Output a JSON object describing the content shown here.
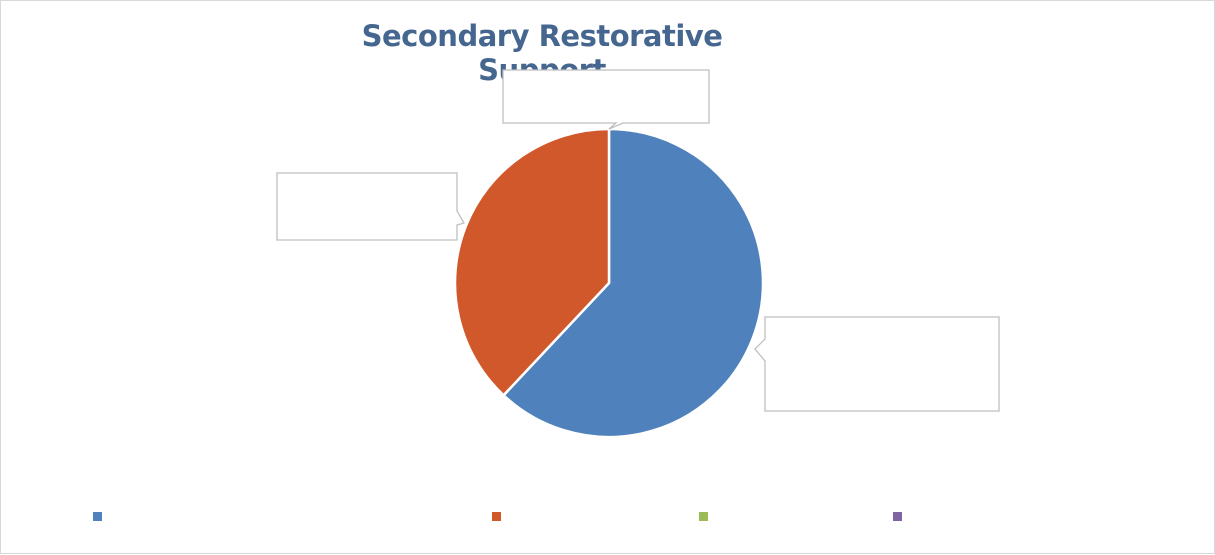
{
  "chart_data": {
    "type": "pie",
    "title": "Secondary Restorative Support",
    "categories": [
      "",
      "",
      "",
      ""
    ],
    "values": [
      62,
      38,
      0,
      0
    ],
    "colors": [
      "#4f81bd",
      "#d0582a",
      "#9bbb59",
      "#8064a2"
    ],
    "data_labels": [
      "",
      "",
      "",
      ""
    ],
    "legend_position": "bottom",
    "start_angle_deg": 0
  }
}
